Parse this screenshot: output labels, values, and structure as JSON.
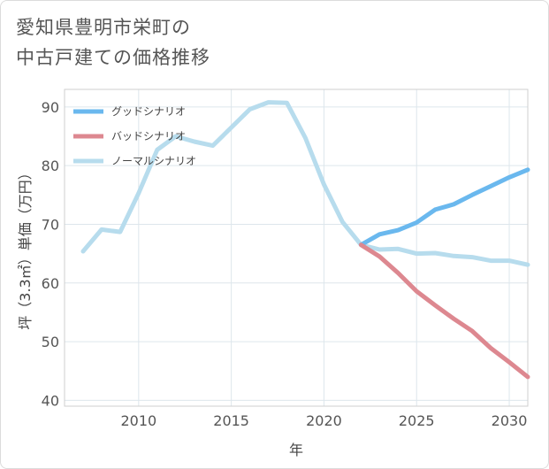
{
  "page": {
    "title_line1": "愛知県豊明市栄町の",
    "title_line2": "中古戸建ての価格推移"
  },
  "chart_data": {
    "type": "line",
    "xlabel": "年",
    "ylabel": "坪（3.3㎡）単価（万円）",
    "xlim": [
      2006,
      2031
    ],
    "ylim": [
      39,
      93
    ],
    "xticks": [
      2010,
      2015,
      2020,
      2025,
      2030
    ],
    "yticks": [
      40,
      50,
      60,
      70,
      80,
      90
    ],
    "grid": true,
    "legend_position": "top-left",
    "series": [
      {
        "name": "グッドシナリオ",
        "color": "#6ab8ee",
        "x": [
          2022,
          2023,
          2024,
          2025,
          2026,
          2027,
          2028,
          2029,
          2030,
          2031
        ],
        "y": [
          66.5,
          68.3,
          69.0,
          70.3,
          72.5,
          73.4,
          75.0,
          76.5,
          78.0,
          79.3
        ]
      },
      {
        "name": "バッドシナリオ",
        "color": "#dd8890",
        "x": [
          2022,
          2023,
          2024,
          2025,
          2026,
          2027,
          2028,
          2029,
          2030,
          2031
        ],
        "y": [
          66.5,
          64.5,
          61.7,
          58.6,
          56.2,
          53.9,
          51.8,
          48.9,
          46.5,
          44.0
        ]
      },
      {
        "name": "ノーマルシナリオ",
        "color": "#b7dced",
        "x": [
          2007,
          2008,
          2009,
          2010,
          2011,
          2012,
          2013,
          2014,
          2015,
          2016,
          2017,
          2018,
          2019,
          2020,
          2021,
          2022,
          2023,
          2024,
          2025,
          2026,
          2027,
          2028,
          2029,
          2030,
          2031
        ],
        "y": [
          65.4,
          69.1,
          68.7,
          75.3,
          82.7,
          85.0,
          84.1,
          83.4,
          86.5,
          89.6,
          90.8,
          90.7,
          84.7,
          76.8,
          70.4,
          66.5,
          65.7,
          65.8,
          65.0,
          65.1,
          64.6,
          64.4,
          63.8,
          63.8,
          63.1
        ]
      }
    ]
  }
}
